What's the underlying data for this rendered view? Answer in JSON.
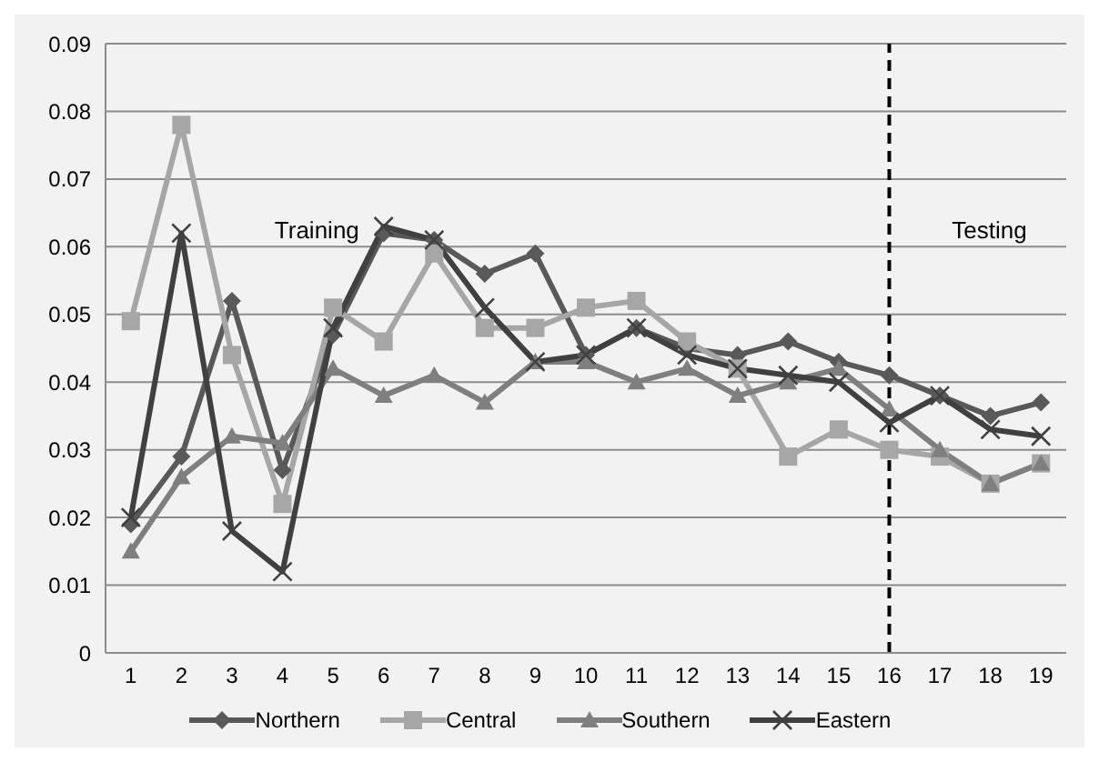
{
  "chart_data": {
    "type": "line",
    "x": [
      1,
      2,
      3,
      4,
      5,
      6,
      7,
      8,
      9,
      10,
      11,
      12,
      13,
      14,
      15,
      16,
      17,
      18,
      19
    ],
    "xlim": [
      0.5,
      19.5
    ],
    "xticks": [
      1,
      2,
      3,
      4,
      5,
      6,
      7,
      8,
      9,
      10,
      11,
      12,
      13,
      14,
      15,
      16,
      17,
      18,
      19
    ],
    "ylim": [
      0,
      0.09
    ],
    "yticks": [
      0,
      0.01,
      0.02,
      0.03,
      0.04,
      0.05,
      0.06,
      0.07,
      0.08,
      0.09
    ],
    "grid": "y",
    "legend": "bottom",
    "line_style": "solid",
    "series": [
      {
        "name": "Northern",
        "color": "#595959",
        "marker": "diamond",
        "values": [
          0.019,
          0.029,
          0.052,
          0.027,
          0.047,
          0.062,
          0.061,
          0.056,
          0.059,
          0.044,
          0.048,
          0.045,
          0.044,
          0.046,
          0.043,
          0.041,
          0.038,
          0.035,
          0.037
        ]
      },
      {
        "name": "Central",
        "color": "#a6a6a6",
        "marker": "square",
        "values": [
          0.049,
          0.078,
          0.044,
          0.022,
          0.051,
          0.046,
          0.059,
          0.048,
          0.048,
          0.051,
          0.052,
          0.046,
          0.042,
          0.029,
          0.033,
          0.03,
          0.029,
          0.025,
          0.028
        ]
      },
      {
        "name": "Southern",
        "color": "#7f7f7f",
        "marker": "triangle",
        "values": [
          0.015,
          0.026,
          0.032,
          0.031,
          0.042,
          0.038,
          0.041,
          0.037,
          0.043,
          0.043,
          0.04,
          0.042,
          0.038,
          0.04,
          0.042,
          0.036,
          0.03,
          0.025,
          0.028
        ]
      },
      {
        "name": "Eastern",
        "color": "#404040",
        "marker": "cross",
        "values": [
          0.02,
          0.062,
          0.018,
          0.012,
          0.048,
          0.063,
          0.061,
          0.051,
          0.043,
          0.044,
          0.048,
          0.044,
          0.042,
          0.041,
          0.04,
          0.034,
          0.038,
          0.033,
          0.032
        ]
      }
    ],
    "ref_lines": [
      {
        "axis": "x",
        "value": 16,
        "color": "#000000",
        "line_style": "dashed"
      }
    ],
    "annotations": [
      "Training",
      "Testing"
    ]
  }
}
